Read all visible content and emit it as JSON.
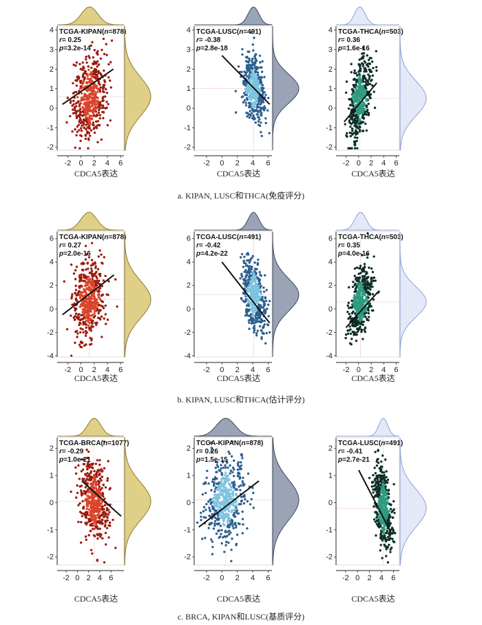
{
  "figure": {
    "xlabel": "CDCA5表达",
    "captions": [
      "a.  KIPAN, LUSC和THCA(免疫评分)",
      "b.  KIPAN, LUSC和THCA(估计评分)",
      "c.  BRCA, KIPAN和LUSC(基质评分)"
    ]
  },
  "colors": {
    "red": "#d9452c",
    "red_dark": "#9b1c10",
    "blue": "#7cc3df",
    "blue_dark": "#2d5f8f",
    "green": "#2f9b80",
    "green_dark": "#0e2f27",
    "gold_fill": "#e0cf86",
    "gold_line": "#8c7730",
    "slate_fill": "#9aa4b6",
    "slate_line": "#3c4658",
    "lav_fill": "#e4e9f7",
    "lav_line": "#8ea1d2"
  },
  "chart_data": [
    {
      "type": "scatter",
      "panel": "a1",
      "color": "red",
      "marginal": "gold",
      "dataset": "TCGA-KIPAN",
      "n": "878",
      "r": "0.25",
      "p": "3.2e-14",
      "xlabel": "CDCA5表达",
      "xticks": [
        -2,
        0,
        2,
        4,
        6
      ],
      "yticks": [
        -2,
        -1,
        0,
        1,
        2,
        3,
        4
      ],
      "xlim": [
        -3.6,
        6.5
      ],
      "ylim": [
        -2.15,
        4.2
      ],
      "x_center": 1.3,
      "x_spread": 1.25,
      "y_center": 0.6,
      "y_spread": 1.0,
      "slope": 0.13,
      "regression": [
        [
          -2.8,
          0.2
        ],
        [
          4.9,
          2.0
        ]
      ]
    },
    {
      "type": "scatter",
      "panel": "a2",
      "color": "blue",
      "marginal": "slate",
      "dataset": "TCGA-LUSC",
      "n": "491",
      "r": "-0.38",
      "p": "2.8e-18",
      "xlabel": "CDCA5表达",
      "xticks": [
        -2,
        0,
        2,
        4,
        6
      ],
      "yticks": [
        -2,
        -1,
        0,
        1,
        2,
        3,
        4
      ],
      "xlim": [
        -3.6,
        6.5
      ],
      "ylim": [
        -2.15,
        4.2
      ],
      "x_center": 4.1,
      "x_spread": 0.7,
      "y_center": 1.0,
      "y_spread": 0.75,
      "slope": -0.35,
      "regression": [
        [
          0.0,
          2.7
        ],
        [
          6.2,
          0.2
        ]
      ]
    },
    {
      "type": "scatter",
      "panel": "a3",
      "color": "green",
      "marginal": "lavender",
      "dataset": "TCGA-THCA",
      "n": "503",
      "r": "0.36",
      "p": "1.6e-16",
      "xlabel": "CDCA5表达",
      "xticks": [
        -2,
        0,
        2,
        4,
        6
      ],
      "yticks": [
        -2,
        -1,
        0,
        1,
        2,
        3,
        4
      ],
      "xlim": [
        -3.6,
        6.5
      ],
      "ylim": [
        -2.15,
        4.2
      ],
      "x_center": 0.2,
      "x_spread": 0.85,
      "y_center": 0.5,
      "y_spread": 0.9,
      "slope": 0.55,
      "regression": [
        [
          -2.3,
          -0.7
        ],
        [
          2.9,
          1.3
        ]
      ]
    },
    {
      "type": "scatter",
      "panel": "b1",
      "color": "red",
      "marginal": "gold",
      "dataset": "TCGA-KIPAN",
      "n": "878",
      "r": "0.27",
      "p": "2.0e-16",
      "xlabel": "CDCA5表达",
      "xticks": [
        -2,
        0,
        2,
        4,
        6
      ],
      "yticks": [
        -4,
        -2,
        0,
        2,
        4,
        6
      ],
      "xlim": [
        -3.6,
        6.5
      ],
      "ylim": [
        -4.1,
        6.6
      ],
      "x_center": 1.2,
      "x_spread": 1.2,
      "y_center": 0.8,
      "y_spread": 1.6,
      "slope": 0.28,
      "regression": [
        [
          -2.8,
          -0.5
        ],
        [
          5.0,
          2.9
        ]
      ]
    },
    {
      "type": "scatter",
      "panel": "b2",
      "color": "blue",
      "marginal": "slate",
      "dataset": "TCGA-LUSC",
      "n": "491",
      "r": "-0.42",
      "p": "4.2e-22",
      "xlabel": "CDCA5表达",
      "xticks": [
        -2,
        0,
        2,
        4,
        6
      ],
      "yticks": [
        -4,
        -2,
        0,
        2,
        4,
        6
      ],
      "xlim": [
        -3.6,
        6.5
      ],
      "ylim": [
        -4.1,
        6.6
      ],
      "x_center": 4.1,
      "x_spread": 0.7,
      "y_center": 1.2,
      "y_spread": 1.4,
      "slope": -0.9,
      "regression": [
        [
          0.0,
          4.0
        ],
        [
          6.2,
          -1.2
        ]
      ]
    },
    {
      "type": "scatter",
      "panel": "b3",
      "color": "green",
      "marginal": "lavender",
      "dataset": "TCGA-THCA",
      "n": "503",
      "r": "0.35",
      "p": "4.0e-16",
      "xlabel": "CDCA5表达",
      "xticks": [
        -2,
        0,
        2,
        4,
        6
      ],
      "yticks": [
        -4,
        -2,
        0,
        2,
        4,
        6
      ],
      "xlim": [
        -3.6,
        6.5
      ],
      "ylim": [
        -4.1,
        6.6
      ],
      "x_center": 0.3,
      "x_spread": 0.9,
      "y_center": 0.6,
      "y_spread": 1.3,
      "slope": 0.7,
      "regression": [
        [
          -2.0,
          -1.6
        ],
        [
          3.0,
          1.4
        ]
      ]
    },
    {
      "type": "scatter",
      "panel": "c1",
      "color": "red",
      "marginal": "gold",
      "dataset": "TCGA-BRCA",
      "n": "1077",
      "r": "-0.29",
      "p": "1.0e-21",
      "xlabel": "CDCA5表达",
      "xticks": [
        -2,
        0,
        2,
        4,
        6
      ],
      "yticks": [
        -2,
        -1,
        0,
        1,
        2
      ],
      "xlim": [
        -3.6,
        8.3
      ],
      "ylim": [
        -2.3,
        2.4
      ],
      "x_center": 3.0,
      "x_spread": 1.2,
      "y_center": 0.05,
      "y_spread": 0.7,
      "slope": -0.15,
      "regression": [
        [
          0.8,
          0.8
        ],
        [
          7.8,
          -0.5
        ]
      ]
    },
    {
      "type": "scatter",
      "panel": "c2",
      "color": "blue",
      "marginal": "slate",
      "dataset": "TCGA-KIPAN",
      "n": "878",
      "r": "0.26",
      "p": "1.5e-15",
      "xlabel": "CDCA5表达",
      "xticks": [
        -2,
        0,
        2,
        4,
        6
      ],
      "yticks": [
        -2,
        -1,
        0,
        1,
        2
      ],
      "xlim": [
        -3.6,
        6.5
      ],
      "ylim": [
        -2.3,
        2.4
      ],
      "x_center": 0.5,
      "x_spread": 1.2,
      "y_center": 0.1,
      "y_spread": 0.75,
      "slope": 0.14,
      "regression": [
        [
          -3.0,
          -0.9
        ],
        [
          4.8,
          0.8
        ]
      ]
    },
    {
      "type": "scatter",
      "panel": "c3",
      "color": "green",
      "marginal": "lavender",
      "dataset": "TCGA-LUSC",
      "n": "491",
      "r": "-0.41",
      "p": "2.7e-21",
      "xlabel": "CDCA5表达",
      "xticks": [
        -2,
        0,
        2,
        4,
        6
      ],
      "yticks": [
        -2,
        -1,
        0,
        1,
        2
      ],
      "xlim": [
        -3.6,
        7.0
      ],
      "ylim": [
        -2.3,
        2.4
      ],
      "x_center": 4.3,
      "x_spread": 0.75,
      "y_center": -0.2,
      "y_spread": 0.7,
      "slope": -0.45,
      "regression": [
        [
          0.2,
          1.2
        ],
        [
          5.6,
          -1.1
        ]
      ]
    }
  ]
}
